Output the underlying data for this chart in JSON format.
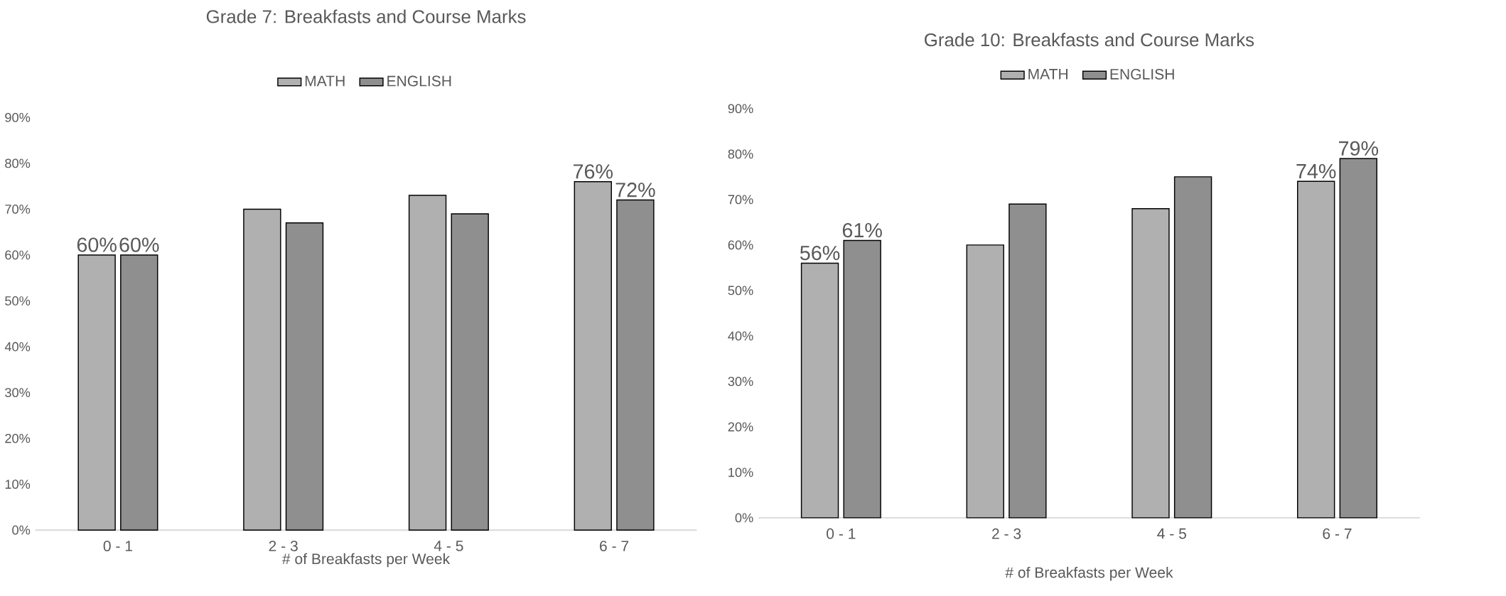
{
  "chart_data": [
    {
      "type": "bar",
      "title": "Grade 7: Breakfasts and Course Marks",
      "xlabel": "# of Breakfasts per Week",
      "categories": [
        "0 - 1",
        "2 - 3",
        "4 - 5",
        "6 - 7"
      ],
      "series": [
        {
          "name": "MATH",
          "color": "#b0b0b0",
          "values": [
            60,
            70,
            73,
            76
          ],
          "value_labels": [
            "60%",
            null,
            null,
            "76%"
          ]
        },
        {
          "name": "ENGLISH",
          "color": "#8f8f8f",
          "values": [
            60,
            67,
            69,
            72
          ],
          "value_labels": [
            "60%",
            null,
            null,
            "72%"
          ]
        }
      ],
      "ylim": [
        0,
        90
      ],
      "yticks": [
        {
          "value": 0,
          "label": "0%"
        },
        {
          "value": 10,
          "label": "10%"
        },
        {
          "value": 20,
          "label": "20%"
        },
        {
          "value": 30,
          "label": "30%"
        },
        {
          "value": 40,
          "label": "40%"
        },
        {
          "value": 50,
          "label": "50%"
        },
        {
          "value": 60,
          "label": "60%"
        },
        {
          "value": 70,
          "label": "70%"
        },
        {
          "value": 80,
          "label": "80%"
        },
        {
          "value": 90,
          "label": "90%"
        }
      ],
      "legend": "top"
    },
    {
      "type": "bar",
      "title": "Grade 10: Breakfasts and Course Marks",
      "xlabel": "# of Breakfasts per Week",
      "categories": [
        "0 - 1",
        "2 - 3",
        "4 - 5",
        "6 - 7"
      ],
      "series": [
        {
          "name": "MATH",
          "color": "#b0b0b0",
          "values": [
            56,
            60,
            68,
            74
          ],
          "value_labels": [
            "56%",
            null,
            null,
            "74%"
          ]
        },
        {
          "name": "ENGLISH",
          "color": "#8f8f8f",
          "values": [
            61,
            69,
            75,
            79
          ],
          "value_labels": [
            "61%",
            null,
            null,
            "79%"
          ]
        }
      ],
      "ylim": [
        0,
        90
      ],
      "yticks": [
        {
          "value": 0,
          "label": "0%"
        },
        {
          "value": 10,
          "label": "10%"
        },
        {
          "value": 20,
          "label": "20%"
        },
        {
          "value": 30,
          "label": "30%"
        },
        {
          "value": 40,
          "label": "40%"
        },
        {
          "value": 50,
          "label": "50%"
        },
        {
          "value": 60,
          "label": "60%"
        },
        {
          "value": 70,
          "label": "70%"
        },
        {
          "value": 80,
          "label": "80%"
        },
        {
          "value": 90,
          "label": "90%"
        }
      ],
      "legend": "top"
    }
  ]
}
